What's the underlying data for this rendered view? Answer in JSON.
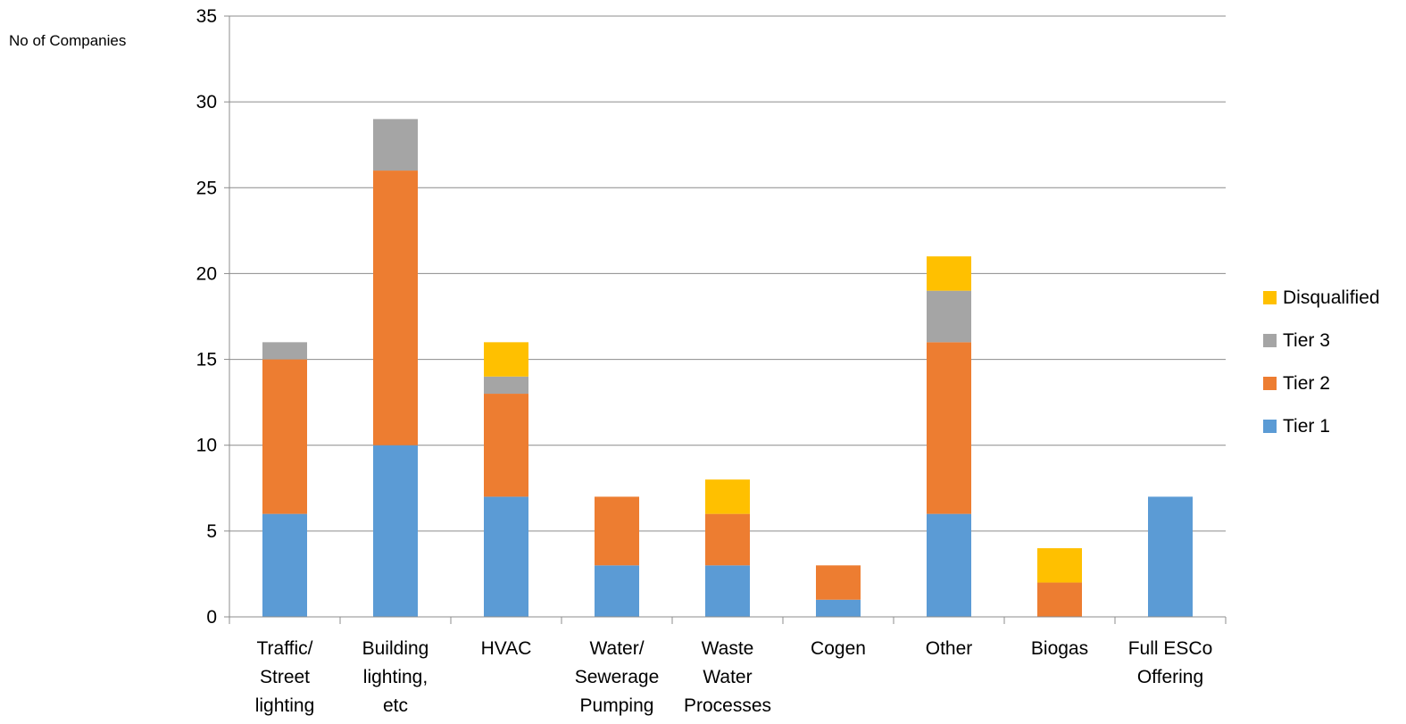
{
  "chart_data": {
    "type": "bar",
    "stacked": true,
    "title": "",
    "xlabel": "",
    "ylabel": "No of Companies",
    "ylim": [
      0,
      35
    ],
    "yticks": [
      0,
      5,
      10,
      15,
      20,
      25,
      30,
      35
    ],
    "grid": true,
    "legend_position": "right",
    "categories": [
      [
        "Traffic/",
        "Street",
        "lighting"
      ],
      [
        "Building",
        "lighting,",
        "etc"
      ],
      [
        "HVAC"
      ],
      [
        "Water/",
        "Sewerage",
        "Pumping"
      ],
      [
        "Waste",
        "Water",
        "Processes"
      ],
      [
        "Cogen"
      ],
      [
        "Other"
      ],
      [
        "Biogas"
      ],
      [
        "Full ESCo",
        "Offering"
      ]
    ],
    "series": [
      {
        "name": "Tier 1",
        "color": "#5B9BD5",
        "values": [
          6,
          10,
          7,
          3,
          3,
          1,
          6,
          0,
          7
        ]
      },
      {
        "name": "Tier 2",
        "color": "#ED7D31",
        "values": [
          9,
          16,
          6,
          4,
          3,
          2,
          10,
          2,
          0
        ]
      },
      {
        "name": "Tier 3",
        "color": "#A5A5A5",
        "values": [
          1,
          3,
          1,
          0,
          0,
          0,
          3,
          0,
          0
        ]
      },
      {
        "name": "Disqualified",
        "color": "#FFC000",
        "values": [
          0,
          0,
          2,
          0,
          2,
          0,
          2,
          2,
          0
        ]
      }
    ],
    "legend_order": [
      "Disqualified",
      "Tier 3",
      "Tier 2",
      "Tier 1"
    ]
  }
}
